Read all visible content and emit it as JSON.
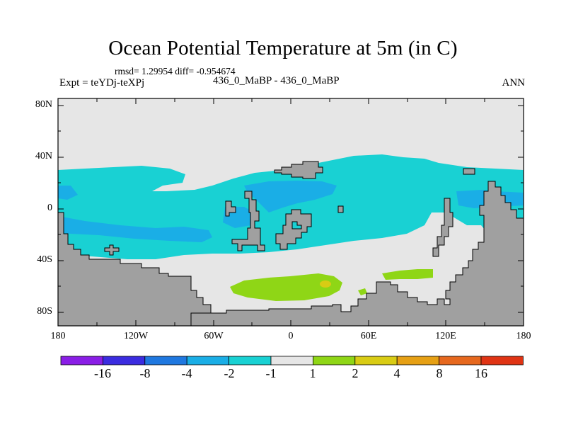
{
  "title": "Ocean Potential Temperature at 5m (in C)",
  "stats_line": "rmsd= 1.29954 diff= -0.954674",
  "left_label": "Expt = teYDj-teXPj",
  "center_label": "436_0_MaBP - 436_0_MaBP",
  "right_label": "ANN",
  "lat_labels": [
    "80N",
    "40N",
    "0",
    "40S",
    "80S"
  ],
  "lon_labels": [
    "180",
    "120W",
    "60W",
    "0",
    "60E",
    "120E",
    "180"
  ],
  "colorbar": {
    "colors": [
      "#8a1ee6",
      "#3b2ce0",
      "#1f78e0",
      "#1aaee6",
      "#19d1d3",
      "#e6e6e6",
      "#8fd616",
      "#d9cc14",
      "#e6a014",
      "#e6681e",
      "#e03414"
    ],
    "labels": [
      "-16",
      "-8",
      "-4",
      "-2",
      "-1",
      "1",
      "2",
      "4",
      "8",
      "16"
    ]
  },
  "map_colors": {
    "near_zero": "#e6e6e6",
    "minus_1_to_2": "#19d1d3",
    "minus_2_to_4": "#1aaee6",
    "plus_1_to_2": "#8fd616",
    "plus_2_to_4": "#d9cc14",
    "land": "#a0a0a0"
  }
}
